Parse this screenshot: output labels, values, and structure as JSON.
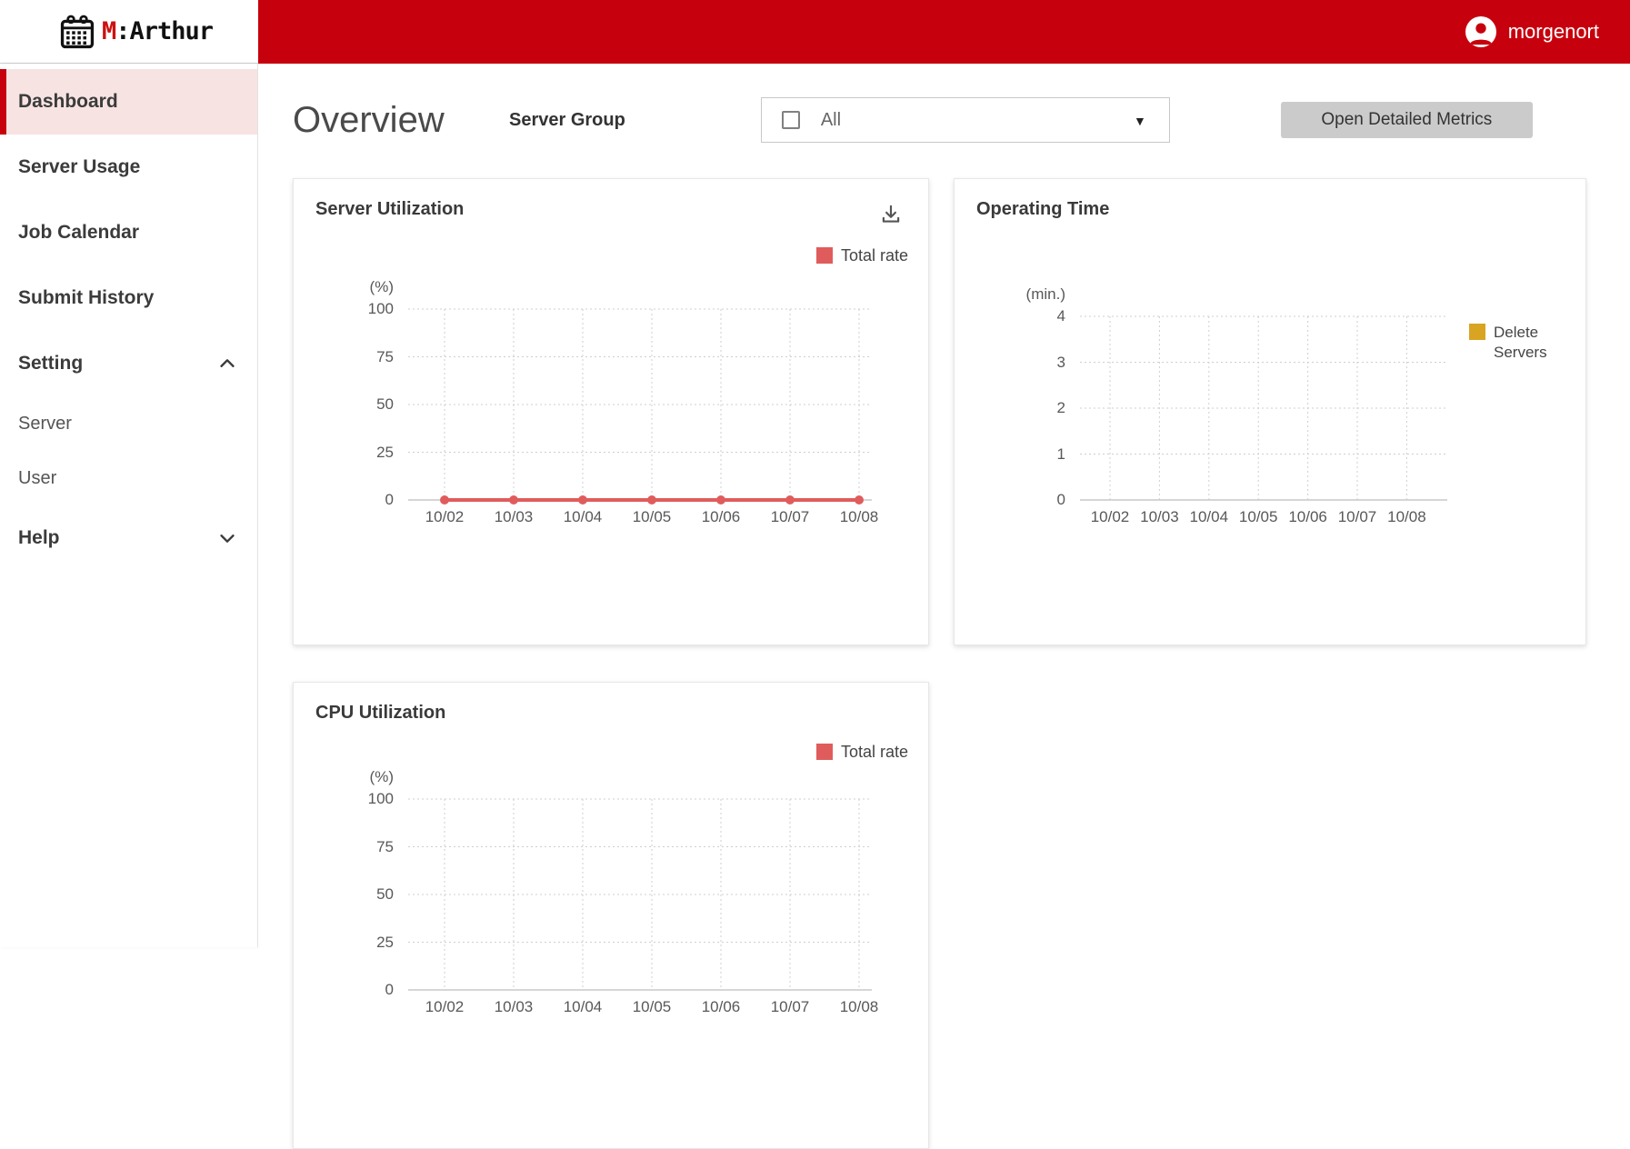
{
  "header": {
    "logo_m": "M",
    "logo_rest": ":Arthur",
    "username": "morgenort"
  },
  "sidebar": {
    "items": [
      {
        "label": "Dashboard",
        "active": true
      },
      {
        "label": "Server Usage"
      },
      {
        "label": "Job Calendar"
      },
      {
        "label": "Submit History"
      },
      {
        "label": "Setting",
        "chevron": "up"
      },
      {
        "label": "Server",
        "sub": true
      },
      {
        "label": "User",
        "sub": true
      },
      {
        "label": "Help",
        "chevron": "down"
      }
    ]
  },
  "toolbar": {
    "page_title": "Overview",
    "server_group_label": "Server Group",
    "dropdown_value": "All",
    "open_metrics_button": "Open Detailed Metrics"
  },
  "colors": {
    "header_red": "#c7000d",
    "line_red": "#e05c5c",
    "legend_gold": "#d9a421",
    "active_item_pink": "#f8e3e3",
    "button_gray": "#cbcbcb"
  },
  "chart_data": [
    {
      "type": "line",
      "title": "Server Utilization",
      "y_unit": "(%)",
      "ylabel": "(%)",
      "ylim": [
        0,
        100
      ],
      "y_ticks": [
        100,
        75,
        50,
        25,
        0
      ],
      "categories": [
        "10/02",
        "10/03",
        "10/04",
        "10/05",
        "10/06",
        "10/07",
        "10/08"
      ],
      "series": [
        {
          "name": "Total rate",
          "color": "#e05c5c",
          "values": [
            0,
            0,
            0,
            0,
            0,
            0,
            0
          ]
        }
      ],
      "legend_position": "top-right",
      "grid": "dotted",
      "has_download_icon": true
    },
    {
      "type": "line",
      "title": "Operating Time",
      "y_unit": "(min.)",
      "ylabel": "(min.)",
      "ylim": [
        0,
        4
      ],
      "y_ticks": [
        4,
        3,
        2,
        1,
        0
      ],
      "categories": [
        "10/02",
        "10/03",
        "10/04",
        "10/05",
        "10/06",
        "10/07",
        "10/08"
      ],
      "series": [
        {
          "name": "Delete Servers",
          "color": "#d9a421",
          "values": []
        }
      ],
      "legend_position": "right",
      "grid": "dotted"
    },
    {
      "type": "line",
      "title": "CPU Utilization",
      "y_unit": "(%)",
      "ylabel": "(%)",
      "ylim": [
        0,
        100
      ],
      "y_ticks": [
        100,
        75,
        50,
        25,
        0
      ],
      "categories": [
        "10/02",
        "10/03",
        "10/04",
        "10/05",
        "10/06",
        "10/07",
        "10/08"
      ],
      "series": [
        {
          "name": "Total rate",
          "color": "#e05c5c",
          "values": []
        }
      ],
      "legend_position": "top-right",
      "grid": "dotted"
    }
  ]
}
